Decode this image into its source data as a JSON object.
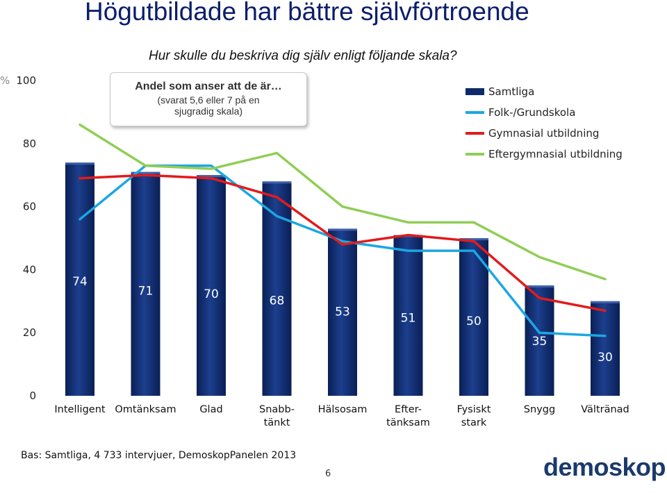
{
  "title": "Högutbildade har bättre självförtroende",
  "subtitle": "Hur skulle du beskriva dig själv enligt följande skala?",
  "callout": {
    "line1": "Andel som anser att de är…",
    "line2": "(svarat 5,6 eller 7 på en",
    "line3": "sjugradig skala)"
  },
  "unit_label": "%",
  "footer": "Bas: Samtliga, 4 733 intervjuer, DemoskopPanelen 2013",
  "page_number": "6",
  "logo_text": "demoskop",
  "chart_data": {
    "type": "bar",
    "categories": [
      [
        "Intelligent"
      ],
      [
        "Omtänksam"
      ],
      [
        "Glad"
      ],
      [
        "Snabb-",
        "tänkt"
      ],
      [
        "Hälsosam"
      ],
      [
        "Efter-",
        "tänksam"
      ],
      [
        "Fysiskt",
        "stark"
      ],
      [
        "Snygg"
      ],
      [
        "Vältränad"
      ]
    ],
    "ylim": [
      0,
      100
    ],
    "yticks": [
      0,
      20,
      40,
      60,
      80,
      100
    ],
    "grid": false,
    "legend_position": "top-right",
    "series": [
      {
        "name": "Samtliga",
        "kind": "bar",
        "color": "#0d2a6b",
        "values": [
          74,
          71,
          70,
          68,
          53,
          51,
          50,
          35,
          30
        ]
      },
      {
        "name": "Folk-/Grundskola",
        "kind": "line",
        "color": "#1ba7e3",
        "values": [
          56,
          73,
          73,
          57,
          49,
          46,
          46,
          20,
          19
        ]
      },
      {
        "name": "Gymnasial utbildning",
        "kind": "line",
        "color": "#e21b1b",
        "values": [
          69,
          70,
          69,
          63,
          48,
          51,
          49,
          31,
          27
        ]
      },
      {
        "name": "Eftergymnasial utbildning",
        "kind": "line",
        "color": "#8fce55",
        "values": [
          86,
          73,
          72,
          77,
          60,
          55,
          55,
          44,
          37
        ]
      }
    ]
  }
}
